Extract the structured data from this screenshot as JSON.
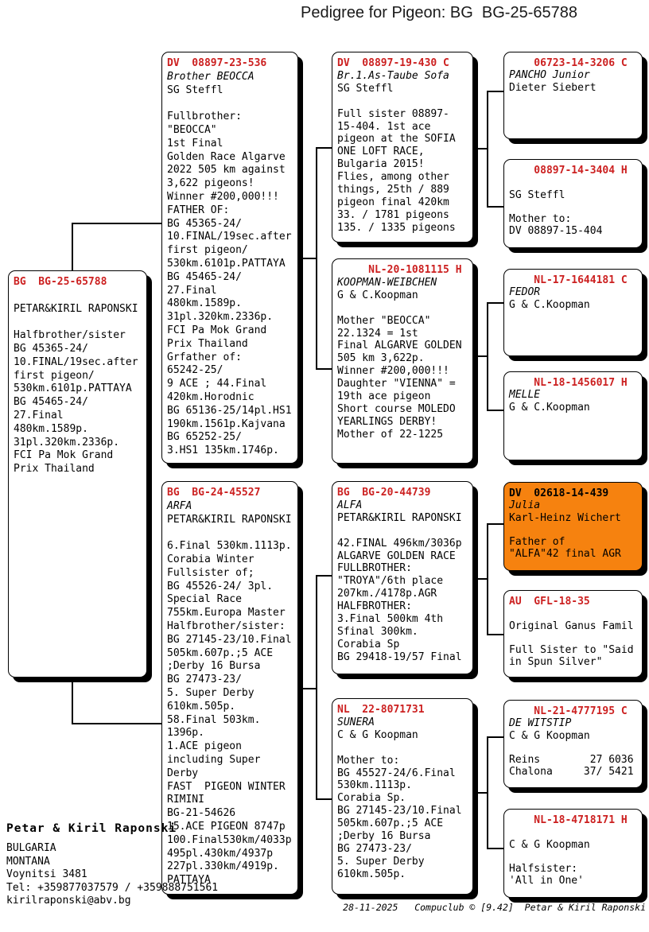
{
  "page_title": "Pedigree for Pigeon: BG  BG-25-65788",
  "colors": {
    "ring_red": "#CC2020",
    "highlight_orange": "#F6820F",
    "line_black": "#000000"
  },
  "boxes": [
    {
      "id": "subject",
      "ring": "BG  BG-25-65788",
      "name": "",
      "highlight": false,
      "lines": [
        "PETAR&KIRIL RAPONSKI",
        "",
        "Halfbrother/sister",
        "BG 45365-24/",
        "10.FINAL/19sec.after",
        "first pigeon/",
        "530km.6101p.PATTAYA",
        "BG 45465-24/",
        "27.Final",
        "480km.1589p.",
        "31pl.320km.2336p.",
        "FCI Pa Mok Grand",
        "Prix Thailand"
      ]
    },
    {
      "id": "sire",
      "ring": "DV  08897-23-536",
      "name": "Brother BEOCCA",
      "highlight": false,
      "lines": [
        "SG Steffl",
        "",
        "Fullbrother:",
        "\"BEOCCA\"",
        "1st Final",
        "Golden Race Algarve",
        "2022 505 km against",
        "3,622 pigeons!",
        "Winner #200,000!!!",
        "FATHER OF:",
        "BG 45365-24/",
        "10.FINAL/19sec.after",
        "first pigeon/",
        "530km.6101p.PATTAYA",
        "BG 45465-24/",
        "27.Final",
        "480km.1589p.",
        "31pl.320km.2336p.",
        "FCI Pa Mok Grand",
        "Prix Thailand",
        "Grfather of:",
        "65242-25/",
        "9 ACE ; 44.Final",
        "420km.Horodnic",
        "BG 65136-25/14pl.HS1",
        "190km.1561p.Kajvana",
        "BG 65252-25/",
        "3.HS1 135km.1746p."
      ]
    },
    {
      "id": "dam",
      "ring": "BG  BG-24-45527",
      "name": "ARFA",
      "highlight": false,
      "lines": [
        "PETAR&KIRIL RAPONSKI",
        "",
        "6.Final 530km.1113p.",
        "Corabia Winter",
        "Fullsister of;",
        "BG 45526-24/ 3pl.",
        "Special Race",
        "755km.Europa Master",
        "Halfbrother/sister:",
        "BG 27145-23/10.Final",
        "505km.607p.;5 ACE",
        ";Derby 16 Bursa",
        "BG 27473-23/",
        "5. Super Derby",
        "610km.505p.",
        "58.Final 503km.",
        "1396p.",
        "1.ACE pigeon",
        "including Super",
        "Derby",
        "FAST  PIGEON WINTER",
        "RIMINI",
        "BG-21-54626",
        "15.ACE PIGEON 8747p",
        "100.Final530km/4033p",
        "495pl.430km/4937p",
        "227pl.330km/4919p.",
        "PATTAYA"
      ]
    },
    {
      "id": "gp1",
      "ring": "DV  08897-19-430 C",
      "name": "Br.1.As-Taube Sofa",
      "highlight": false,
      "lines": [
        "SG Steffl",
        "",
        "Full sister 08897-",
        "15-404. 1st ace",
        "pigeon at the SOFIA",
        "ONE LOFT RACE,",
        "Bulgaria 2015!",
        "Flies, among other",
        "things, 25th / 889",
        "pigeon final 420km",
        "33. / 1781 pigeons",
        "135. / 1335 pigeons"
      ]
    },
    {
      "id": "gp2",
      "ring": "     NL-20-1081115 H",
      "name": "KOOPMAN-WEIBCHEN",
      "highlight": false,
      "lines": [
        "G & C.Koopman",
        "",
        "Mother \"BEOCCA\"",
        "22.1324 = 1st",
        "Final ALGARVE GOLDEN",
        "505 km 3,622p.",
        "Winner #200,000!!!",
        "Daughter \"VIENNA\" =",
        "19th ace pigeon",
        "Short course MOLEDO",
        "YEARLINGS DERBY!",
        "Mother of 22-1225"
      ]
    },
    {
      "id": "gp3",
      "ring": "BG  BG-20-44739",
      "name": "ALFA",
      "highlight": false,
      "lines": [
        "PETAR&KIRIL RAPONSKI",
        "",
        "42.FINAL 496km/3036p",
        "ALGARVE GOLDEN RACE",
        "FULLBROTHER:",
        "\"TROYA\"/6th place",
        "207km./4178p.AGR",
        "HALFBROTHER:",
        "3.Final 500km 4th",
        "Sfinal 300km.",
        "Corabia Sp",
        "BG 29418-19/57 Final"
      ]
    },
    {
      "id": "gp4",
      "ring": "NL  22-8071731",
      "name": "SUNERA",
      "highlight": false,
      "lines": [
        "C & G Koopman",
        "",
        "Mother to:",
        "BG 45527-24/6.Final",
        "530km.1113p.",
        "Corabia Sp.",
        "BG 27145-23/10.Final",
        "505km.607p.;5 ACE",
        ";Derby 16 Bursa",
        "BG 27473-23/",
        "5. Super Derby",
        "610km.505p."
      ]
    },
    {
      "id": "gg1",
      "ring": "    06723-14-3206 C",
      "name": "PANCHO Junior",
      "highlight": false,
      "lines": [
        "Dieter Siebert"
      ]
    },
    {
      "id": "gg2",
      "ring": "    08897-14-3404 H",
      "name": "",
      "highlight": false,
      "lines": [
        "SG Steffl",
        "",
        "Mother to:",
        "DV 08897-15-404"
      ]
    },
    {
      "id": "gg3",
      "ring": "    NL-17-1644181 C",
      "name": "FEDOR",
      "highlight": false,
      "lines": [
        "G & C.Koopman"
      ]
    },
    {
      "id": "gg4",
      "ring": "    NL-18-1456017 H",
      "name": "MELLE",
      "highlight": false,
      "lines": [
        "G & C.Koopman"
      ]
    },
    {
      "id": "gg5",
      "ring": "DV  02618-14-439",
      "name": "Julia",
      "highlight": true,
      "lines": [
        "Karl-Heinz Wichert",
        "",
        "Father of",
        "\"ALFA\"42 final AGR"
      ]
    },
    {
      "id": "gg6",
      "ring": "AU  GFL-18-35",
      "name": "",
      "highlight": false,
      "lines": [
        "Original Ganus Famil",
        "",
        "Full Sister to \"Said",
        "in Spun Silver\""
      ]
    },
    {
      "id": "gg7",
      "ring": "    NL-21-4777195 C",
      "name": "DE WITSTIP",
      "highlight": false,
      "lines": [
        "C & G Koopman",
        "",
        "Reins        27 6036",
        "Chalona     37/ 5421"
      ]
    },
    {
      "id": "gg8",
      "ring": "    NL-18-4718171 H",
      "name": "",
      "highlight": false,
      "lines": [
        "C & G Koopman",
        "",
        "Halfsister:",
        "'All in One'"
      ]
    }
  ],
  "contact": {
    "name": "Petar & Kiril Raponski",
    "country": "BULGARIA",
    "region": "MONTANA",
    "address": "Voynitsi 3481",
    "tel": "Tel: +359877037579 / +359888751561",
    "email": "kirilraponski@abv.bg"
  },
  "footer": {
    "date": "28-11-2025",
    "app": "Compuclub © [9.42]",
    "owner": "Petar & Kiril Raponski"
  }
}
